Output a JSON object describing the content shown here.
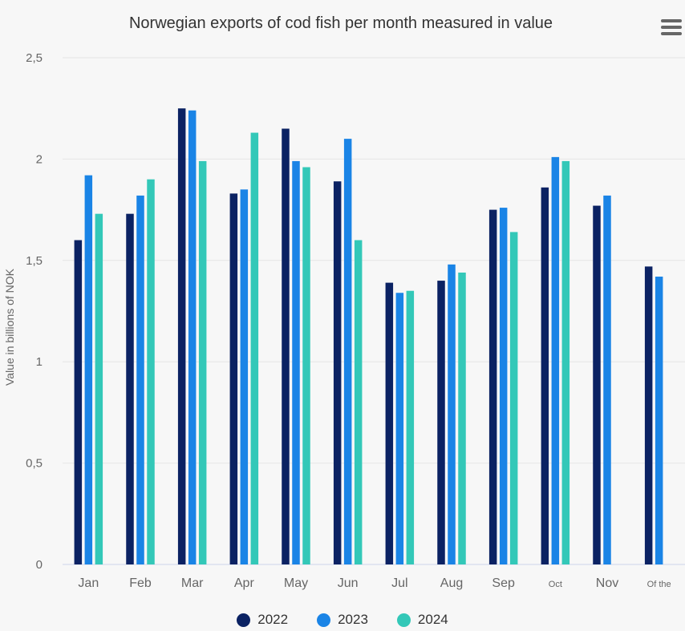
{
  "chart_data": {
    "type": "bar",
    "title": "Norwegian exports of cod fish per month measured in value",
    "ylabel": "Value in billions of NOK",
    "xlabel": "",
    "ylim": [
      0,
      2.5
    ],
    "yticks": [
      "0",
      "0,5",
      "1",
      "1,5",
      "2",
      "2,5"
    ],
    "ytick_values": [
      0,
      0.5,
      1,
      1.5,
      2,
      2.5
    ],
    "categories": [
      "Jan",
      "Feb",
      "Mar",
      "Apr",
      "May",
      "Jun",
      "Jul",
      "Aug",
      "Sep",
      "Oct",
      "Nov",
      "Of the"
    ],
    "series": [
      {
        "name": "2022",
        "color": "#0b2263",
        "values": [
          1.6,
          1.73,
          2.25,
          1.83,
          2.15,
          1.89,
          1.39,
          1.4,
          1.75,
          1.86,
          1.77,
          1.47
        ]
      },
      {
        "name": "2023",
        "color": "#1a84e6",
        "values": [
          1.92,
          1.82,
          2.24,
          1.85,
          1.99,
          2.1,
          1.34,
          1.48,
          1.76,
          2.01,
          1.82,
          1.42
        ]
      },
      {
        "name": "2024",
        "color": "#33c8b8",
        "values": [
          1.73,
          1.9,
          1.99,
          2.13,
          1.96,
          1.6,
          1.35,
          1.44,
          1.64,
          1.99,
          null,
          null
        ]
      }
    ],
    "grid": true,
    "legend": "bottom-center"
  },
  "menu": {
    "icon": "hamburger-menu-icon"
  }
}
